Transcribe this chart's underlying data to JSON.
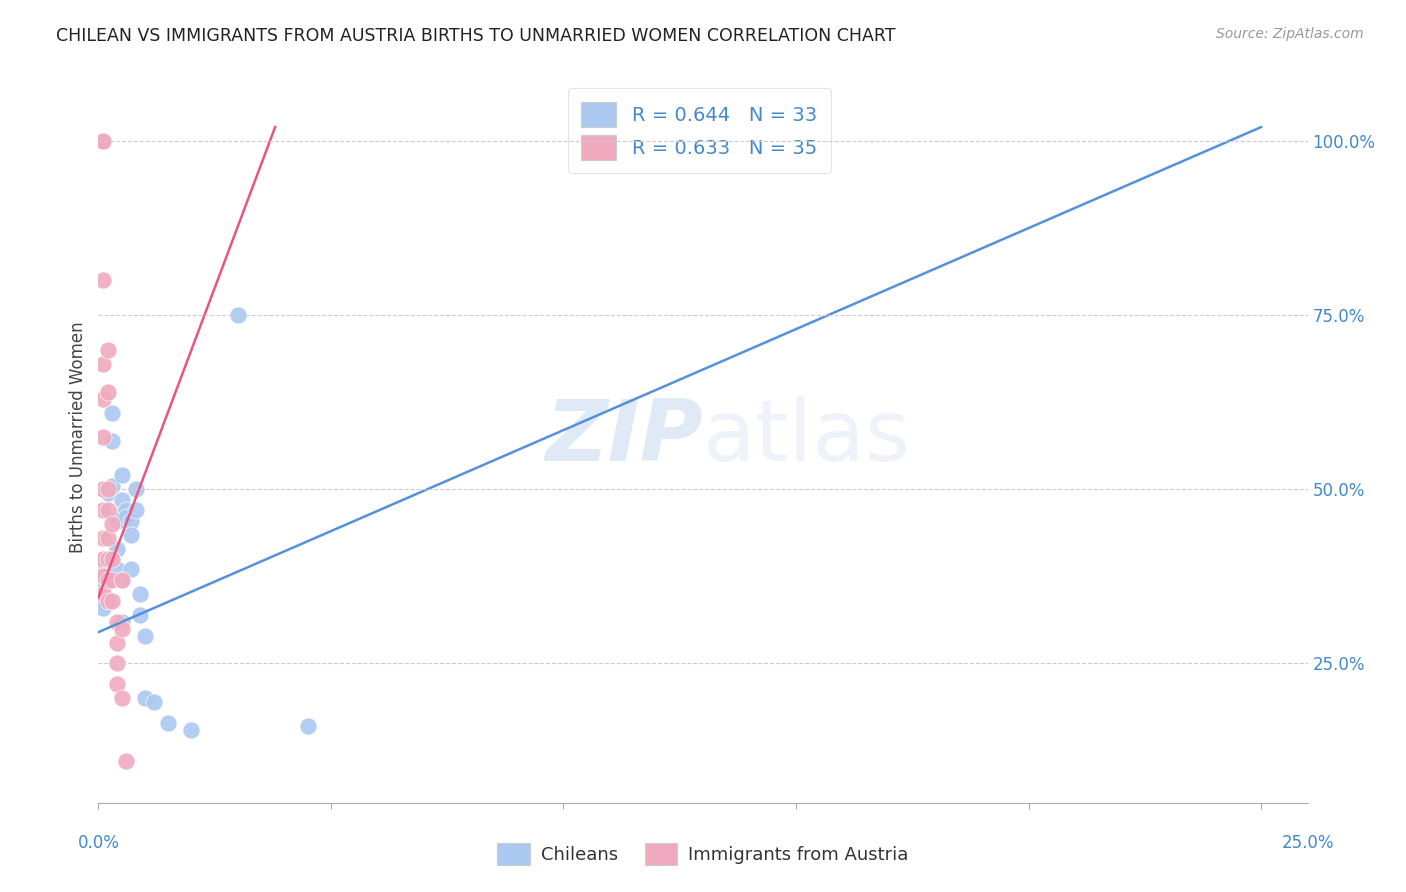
{
  "title": "CHILEAN VS IMMIGRANTS FROM AUSTRIA BIRTHS TO UNMARRIED WOMEN CORRELATION CHART",
  "source": "Source: ZipAtlas.com",
  "ylabel": "Births to Unmarried Women",
  "legend1_label": "R = 0.644   N = 33",
  "legend2_label": "R = 0.633   N = 35",
  "bottom_legend": [
    "Chileans",
    "Immigrants from Austria"
  ],
  "blue_color": "#aac8f0",
  "pink_color": "#f0aac0",
  "blue_line_color": "#5590dd",
  "pink_line_color": "#e85580",
  "title_color": "#222222",
  "axis_label_color": "#4488cc",
  "watermark_zip": "ZIP",
  "watermark_atlas": "atlas",
  "blue_dots_x": [
    0.001,
    0.001,
    0.001,
    0.001,
    0.001,
    0.002,
    0.003,
    0.003,
    0.003,
    0.004,
    0.004,
    0.004,
    0.005,
    0.005,
    0.005,
    0.005,
    0.005,
    0.006,
    0.006,
    0.007,
    0.007,
    0.007,
    0.008,
    0.008,
    0.009,
    0.009,
    0.01,
    0.01,
    0.012,
    0.015,
    0.02,
    0.03,
    0.045
  ],
  "blue_dots_y": [
    0.395,
    0.375,
    0.355,
    0.345,
    0.33,
    0.495,
    0.61,
    0.57,
    0.505,
    0.455,
    0.415,
    0.385,
    0.52,
    0.485,
    0.465,
    0.37,
    0.31,
    0.47,
    0.46,
    0.455,
    0.435,
    0.385,
    0.5,
    0.47,
    0.35,
    0.32,
    0.29,
    0.2,
    0.195,
    0.165,
    0.155,
    0.75,
    0.16
  ],
  "pink_dots_x": [
    0.001,
    0.001,
    0.001,
    0.001,
    0.001,
    0.001,
    0.001,
    0.001,
    0.001,
    0.001,
    0.001,
    0.001,
    0.001,
    0.001,
    0.001,
    0.002,
    0.002,
    0.002,
    0.002,
    0.002,
    0.002,
    0.002,
    0.002,
    0.003,
    0.003,
    0.003,
    0.003,
    0.004,
    0.004,
    0.004,
    0.004,
    0.005,
    0.005,
    0.005,
    0.006
  ],
  "pink_dots_y": [
    1.0,
    1.0,
    1.0,
    1.0,
    1.0,
    0.8,
    0.68,
    0.63,
    0.575,
    0.5,
    0.47,
    0.43,
    0.4,
    0.375,
    0.35,
    0.7,
    0.64,
    0.5,
    0.47,
    0.43,
    0.4,
    0.37,
    0.34,
    0.45,
    0.4,
    0.37,
    0.34,
    0.31,
    0.28,
    0.25,
    0.22,
    0.37,
    0.3,
    0.2,
    0.11
  ],
  "blue_line_x": [
    0.0,
    0.25
  ],
  "blue_line_y": [
    0.295,
    1.02
  ],
  "pink_line_x": [
    0.0,
    0.038
  ],
  "pink_line_y": [
    0.345,
    1.02
  ],
  "xlim": [
    0.0,
    0.26
  ],
  "ylim": [
    0.05,
    1.1
  ],
  "xticks": [
    0.0,
    0.05,
    0.1,
    0.15,
    0.2,
    0.25
  ],
  "yticks_right": [
    0.25,
    0.5,
    0.75,
    1.0
  ],
  "ytick_labels": [
    "25.0%",
    "50.0%",
    "75.0%",
    "100.0%"
  ]
}
